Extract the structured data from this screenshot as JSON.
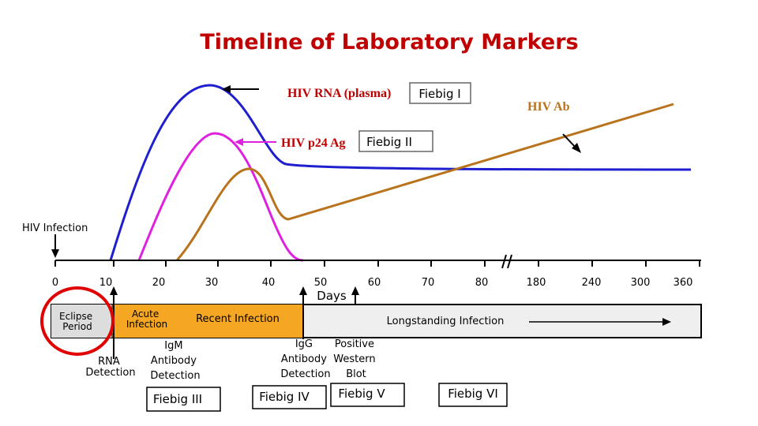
{
  "title": "Timeline of Laboratory Markers",
  "labels": {
    "hiv_rna": "HIV RNA (plasma)",
    "hiv_p24": "HIV p24 Ag",
    "hiv_ab": "HIV Ab",
    "hiv_infection": "HIV Infection",
    "days": "Days"
  },
  "axis_ticks": [
    "0",
    "10",
    "20",
    "30",
    "40",
    "50",
    "60",
    "70",
    "80",
    "180",
    "240",
    "300",
    "360"
  ],
  "phases": {
    "eclipse": [
      "Eclipse",
      "Period"
    ],
    "acute": [
      "Acute",
      "Infection"
    ],
    "recent": "Recent Infection",
    "longstanding": "Longstanding Infection"
  },
  "detection": {
    "rna": [
      "RNA",
      "Detection"
    ],
    "igm": [
      "IgM",
      "Antibody",
      "Detection"
    ],
    "igg": [
      "IgG",
      "Antibody",
      "Detection"
    ],
    "western": [
      "Positive",
      "Western",
      "Blot"
    ]
  },
  "fiebig": {
    "i": "Fiebig I",
    "ii": "Fiebig II",
    "iii": "Fiebig III",
    "iv": "Fiebig IV",
    "v": "Fiebig V",
    "vi": "Fiebig VI"
  },
  "colors": {
    "title": "#c00000",
    "rna": "#1f1fcf",
    "p24": "#e020e0",
    "ab": "#b8731c",
    "label_red": "#c00000",
    "bar_bg": "#efefef",
    "recent_bg": "#f5a623",
    "circle": "#e00000"
  }
}
